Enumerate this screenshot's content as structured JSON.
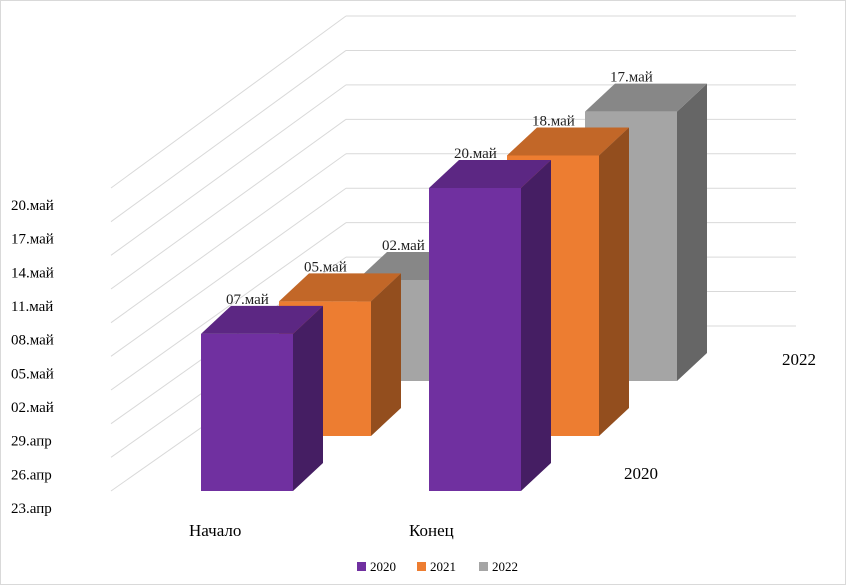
{
  "chart_data": {
    "type": "bar",
    "variant": "3d-column",
    "categories": [
      "Начало",
      "Конец"
    ],
    "series": [
      {
        "name": "2020",
        "color": "#7030a0",
        "values": [
          "07.май",
          "20.май"
        ]
      },
      {
        "name": "2021",
        "color": "#ed7d31",
        "values": [
          "05.май",
          "18.май"
        ]
      },
      {
        "name": "2022",
        "color": "#a5a5a5",
        "values": [
          "02.май",
          "17.май"
        ]
      }
    ],
    "y_ticks": [
      "23.апр",
      "26.апр",
      "29.апр",
      "02.май",
      "05.май",
      "08.май",
      "11.май",
      "14.май",
      "17.май",
      "20.май"
    ],
    "depth_labels": [
      "2020",
      "2022"
    ],
    "grid": true,
    "legend": "bottom"
  }
}
